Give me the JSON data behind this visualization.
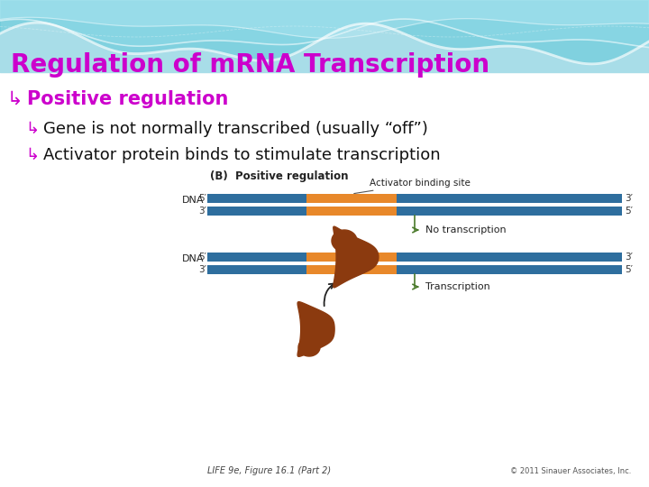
{
  "title": "Regulation of mRNA Transcription",
  "title_color": "#cc00cc",
  "bullet1": "Positive regulation",
  "bullet2": "Gene is not normally transcribed (usually “off”)",
  "bullet3": "Activator protein binds to stimulate transcription",
  "bullet_color": "#cc00cc",
  "sub_label": "(B)  Positive regulation",
  "dna_blue": "#3a7ca5",
  "dna_blue_dark": "#2e6e9e",
  "dna_orange": "#e8882a",
  "green_arrow": "#4a7a2a",
  "protein_color": "#8B3A0F",
  "footnote": "LIFE 9e, Figure 16.1 (Part 2)",
  "copyright": "© 2011 Sinauer Associates, Inc.",
  "wave_color1": "#7ecfd8",
  "wave_color2": "#a8dde8",
  "wave_color3": "#c5eef5",
  "bg_white": "#ffffff"
}
